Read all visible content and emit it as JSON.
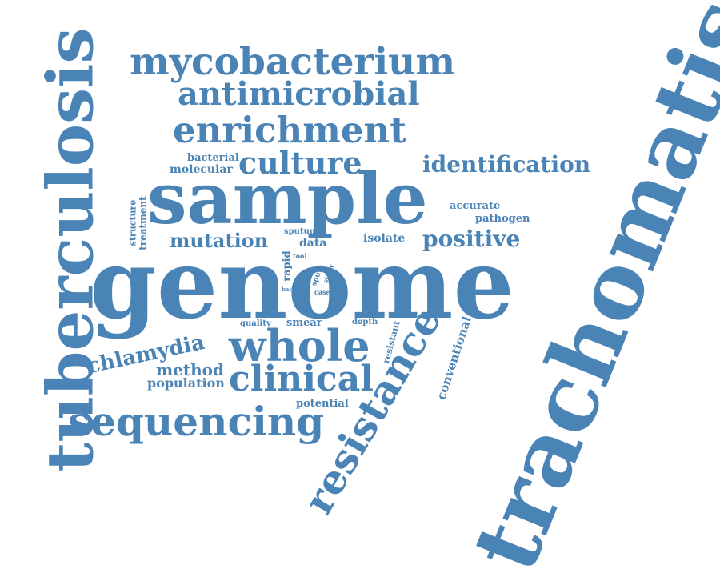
{
  "word_color": "#4a83b5",
  "background": "#ffffff",
  "words": {
    "trachomatis": "trachomatis",
    "tuberculosis": "tuberculosis",
    "genome": "genome",
    "sample": "sample",
    "mycobacterium": "mycobacterium",
    "antimicrobial": "antimicrobial",
    "enrichment": "enrichment",
    "culture": "culture",
    "identification": "identification",
    "bacterial": "bacterial",
    "molecular": "molecular",
    "accurate": "accurate",
    "pathogen": "pathogen",
    "structure": "structure",
    "treatment": "treatment",
    "mutation": "mutation",
    "sputum": "sputum",
    "data": "data",
    "isolate": "isolate",
    "positive": "positive",
    "rapid": "rapid",
    "tool": "tool",
    "sputa": "sputa",
    "study": "study",
    "bait": "bait",
    "case": "case",
    "quality": "quality",
    "smear": "smear",
    "depth": "depth",
    "resistant": "resistant",
    "whole": "whole",
    "chlamydia": "chlamydia",
    "method": "method",
    "population": "population",
    "clinical": "clinical",
    "potential": "potential",
    "sequencing": "sequencing",
    "resistance": "resistance",
    "conventional": "conventional"
  }
}
